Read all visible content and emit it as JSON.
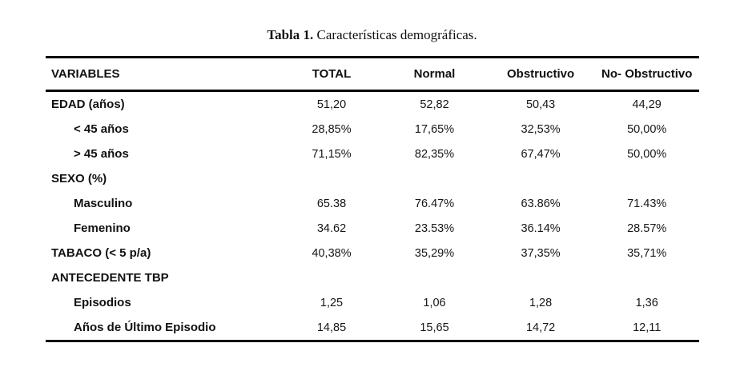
{
  "title": {
    "label": "Tabla 1.",
    "text": " Características demográficas."
  },
  "chart_data": {
    "type": "table",
    "title": "Tabla 1. Características demográficas.",
    "headers": [
      "VARIABLES",
      "TOTAL",
      "Normal",
      "Obstructivo",
      "No- Obstructivo"
    ],
    "rows": [
      {
        "label": "EDAD (años)",
        "indent": false,
        "values": [
          "51,20",
          "52,82",
          "50,43",
          "44,29"
        ]
      },
      {
        "label": "< 45 años",
        "indent": true,
        "values": [
          "28,85%",
          "17,65%",
          "32,53%",
          "50,00%"
        ]
      },
      {
        "label": "> 45 años",
        "indent": true,
        "values": [
          "71,15%",
          "82,35%",
          "67,47%",
          "50,00%"
        ]
      },
      {
        "label": "SEXO (%)",
        "indent": false,
        "values": [
          "",
          "",
          "",
          ""
        ]
      },
      {
        "label": "Masculino",
        "indent": true,
        "values": [
          "65.38",
          "76.47%",
          "63.86%",
          "71.43%"
        ]
      },
      {
        "label": "Femenino",
        "indent": true,
        "values": [
          "34.62",
          "23.53%",
          "36.14%",
          "28.57%"
        ]
      },
      {
        "label": "TABACO (< 5 p/a)",
        "indent": false,
        "values": [
          "40,38%",
          "35,29%",
          "37,35%",
          "35,71%"
        ]
      },
      {
        "label": "ANTECEDENTE TBP",
        "indent": false,
        "values": [
          "",
          "",
          "",
          ""
        ]
      },
      {
        "label": "Episodios",
        "indent": true,
        "values": [
          "1,25",
          "1,06",
          "1,28",
          "1,36"
        ]
      },
      {
        "label": "Años de Último Episodio",
        "indent": true,
        "values": [
          "14,85",
          "15,65",
          "14,72",
          "12,11"
        ]
      }
    ]
  }
}
